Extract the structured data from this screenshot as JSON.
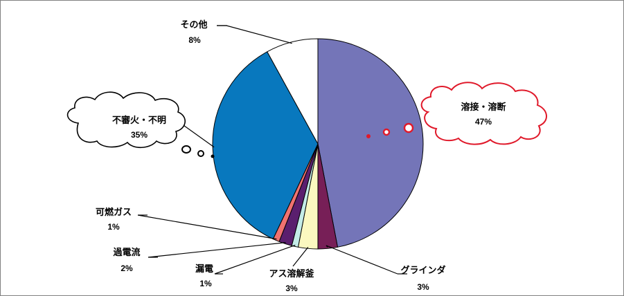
{
  "chart_data": {
    "type": "pie",
    "slices": [
      {
        "label": "溶接・溶断",
        "value": 47,
        "value_label": "47%",
        "color": "#7475b8"
      },
      {
        "label": "グラインダ",
        "value": 3,
        "value_label": "3%",
        "color": "#771f57"
      },
      {
        "label": "アス溶解釜",
        "value": 3,
        "value_label": "3%",
        "color": "#fbf8c0"
      },
      {
        "label": "漏電",
        "value": 1,
        "value_label": "1%",
        "color": "#c4ece8"
      },
      {
        "label": "過電流",
        "value": 2,
        "value_label": "2%",
        "color": "#5a1f6e"
      },
      {
        "label": "可燃ガス",
        "value": 1,
        "value_label": "1%",
        "color": "#ef7270"
      },
      {
        "label": "不審火・不明",
        "value": 35,
        "value_label": "35%",
        "color": "#0878be"
      },
      {
        "label": "その他",
        "value": 8,
        "value_label": "8%",
        "color": "#ffffff"
      }
    ],
    "title": "",
    "legend": "none",
    "annotations": {
      "highlight_callout_color": "#e0192a",
      "callout_color": "#000000"
    }
  }
}
